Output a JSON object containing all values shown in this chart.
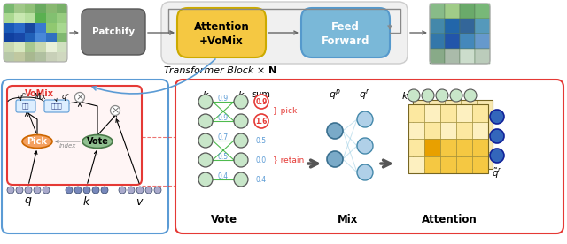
{
  "title_text": "Transformer Block × ",
  "title_bold": "N",
  "sum_values": [
    "0.9",
    "1.6",
    "0.5",
    "0.0",
    "0.4"
  ],
  "edge_values": [
    "0.9",
    "0.9",
    "0.7",
    "0.5",
    "0.4"
  ],
  "attention_grid_highlight": "#e8a000",
  "attention_grid_mid": "#f5c842",
  "attention_grid_light": "#fce8a0",
  "attention_grid_pale": "#fdf0c0",
  "vote_green": "#c8e6c9",
  "pick_orange": "#f4a060",
  "vote_node_green": "#90c090",
  "red_border": "#e53935",
  "blue_border": "#5b9bd5",
  "ff_blue": "#7ab8d8",
  "attn_yellow": "#f5c842",
  "patchify_gray": "#808080",
  "pipeline_bg": "#f0f0f0",
  "arrow_gray": "#888888",
  "mix_dark_blue": "#7aaac8",
  "mix_light_blue": "#b0d0e8",
  "qr_dark_blue": "#3366bb",
  "green_line": "#22aa22"
}
